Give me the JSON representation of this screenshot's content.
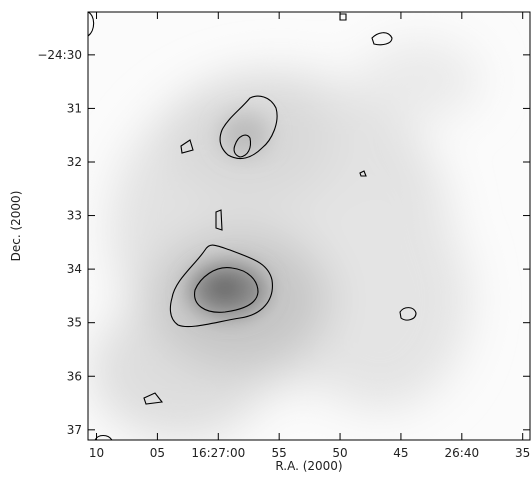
{
  "chart_data": {
    "type": "image",
    "x_label": "R.A. (2000)",
    "y_label": "Dec. (2000)",
    "xlim": [
      70.7,
      34.4
    ],
    "xticks": [
      {
        "value": 70,
        "label": "10"
      },
      {
        "value": 65,
        "label": "05"
      },
      {
        "value": 60,
        "label": "16:27:00"
      },
      55,
      50,
      45,
      {
        "value": 40,
        "label": "26:40"
      },
      35
    ],
    "ylim": [
      29.2,
      37.19
    ],
    "yticks": [
      {
        "value": 30,
        "label": "−24:30"
      },
      31,
      32,
      33,
      34,
      35,
      36,
      37
    ]
  }
}
